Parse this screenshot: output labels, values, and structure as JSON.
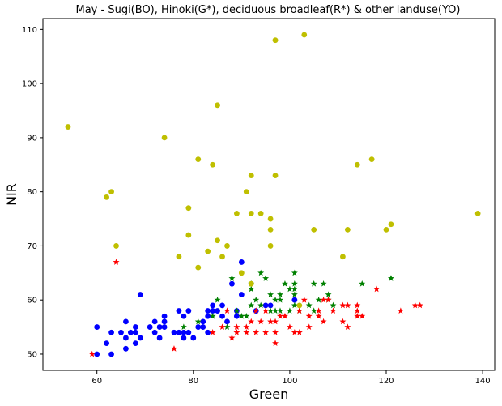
{
  "chart_data": {
    "type": "scatter",
    "title": "May - Sugi(BO), Hinoki(G*), deciduous broadleaf(R*) & other landuse(YO)",
    "xlabel": "Green",
    "ylabel": "NIR",
    "xlim": [
      48.8,
      142.5
    ],
    "ylim": [
      47,
      112
    ],
    "xticks": [
      60,
      80,
      100,
      120,
      140
    ],
    "yticks": [
      50,
      60,
      70,
      80,
      90,
      100,
      110
    ],
    "grid": false,
    "series": [
      {
        "color": "#0000ff",
        "marker": "circle",
        "points": [
          [
            60,
            50
          ],
          [
            60,
            55
          ],
          [
            62,
            52
          ],
          [
            63,
            50
          ],
          [
            63,
            54
          ],
          [
            65,
            54
          ],
          [
            66,
            51
          ],
          [
            66,
            53
          ],
          [
            66,
            56
          ],
          [
            67,
            54
          ],
          [
            68,
            52
          ],
          [
            68,
            54
          ],
          [
            68,
            55
          ],
          [
            69,
            53
          ],
          [
            69,
            61
          ],
          [
            71,
            55
          ],
          [
            72,
            54
          ],
          [
            72,
            56
          ],
          [
            73,
            53
          ],
          [
            73,
            55
          ],
          [
            74,
            55
          ],
          [
            74,
            56
          ],
          [
            74,
            57
          ],
          [
            76,
            54
          ],
          [
            77,
            54
          ],
          [
            77,
            58
          ],
          [
            78,
            53
          ],
          [
            78,
            54
          ],
          [
            78,
            57
          ],
          [
            79,
            54
          ],
          [
            79,
            58
          ],
          [
            80,
            53
          ],
          [
            81,
            55
          ],
          [
            82,
            55
          ],
          [
            82,
            56
          ],
          [
            83,
            54
          ],
          [
            83,
            57
          ],
          [
            83,
            58
          ],
          [
            84,
            58
          ],
          [
            84,
            59
          ],
          [
            85,
            58
          ],
          [
            86,
            57
          ],
          [
            86,
            59
          ],
          [
            87,
            56
          ],
          [
            88,
            63
          ],
          [
            89,
            58
          ],
          [
            89,
            57
          ],
          [
            90,
            61
          ],
          [
            90,
            67
          ],
          [
            93,
            58
          ],
          [
            95,
            59
          ],
          [
            96,
            59
          ],
          [
            101,
            60
          ]
        ]
      },
      {
        "color": "#008000",
        "marker": "star",
        "points": [
          [
            78,
            55
          ],
          [
            81,
            56
          ],
          [
            84,
            57
          ],
          [
            85,
            60
          ],
          [
            87,
            55
          ],
          [
            88,
            64
          ],
          [
            89,
            58
          ],
          [
            90,
            57
          ],
          [
            91,
            57
          ],
          [
            92,
            59
          ],
          [
            92,
            62
          ],
          [
            92,
            63
          ],
          [
            93,
            60
          ],
          [
            94,
            59
          ],
          [
            94,
            65
          ],
          [
            95,
            64
          ],
          [
            96,
            58
          ],
          [
            96,
            61
          ],
          [
            97,
            58
          ],
          [
            97,
            60
          ],
          [
            98,
            58
          ],
          [
            98,
            60
          ],
          [
            98,
            61
          ],
          [
            99,
            63
          ],
          [
            100,
            62
          ],
          [
            100,
            58
          ],
          [
            101,
            59
          ],
          [
            101,
            61
          ],
          [
            101,
            62
          ],
          [
            101,
            63
          ],
          [
            101,
            65
          ],
          [
            102,
            58
          ],
          [
            104,
            59
          ],
          [
            105,
            58
          ],
          [
            105,
            63
          ],
          [
            106,
            60
          ],
          [
            107,
            63
          ],
          [
            108,
            61
          ],
          [
            108,
            60
          ],
          [
            109,
            59
          ],
          [
            115,
            63
          ],
          [
            121,
            64
          ]
        ]
      },
      {
        "color": "#ff0000",
        "marker": "star",
        "points": [
          [
            59,
            50
          ],
          [
            64,
            67
          ],
          [
            76,
            51
          ],
          [
            84,
            54
          ],
          [
            86,
            55
          ],
          [
            87,
            58
          ],
          [
            88,
            53
          ],
          [
            89,
            54
          ],
          [
            89,
            55
          ],
          [
            91,
            54
          ],
          [
            91,
            55
          ],
          [
            92,
            56
          ],
          [
            93,
            54
          ],
          [
            93,
            58
          ],
          [
            94,
            56
          ],
          [
            95,
            54
          ],
          [
            95,
            58
          ],
          [
            96,
            56
          ],
          [
            97,
            52
          ],
          [
            97,
            54
          ],
          [
            97,
            56
          ],
          [
            98,
            57
          ],
          [
            99,
            57
          ],
          [
            100,
            55
          ],
          [
            101,
            54
          ],
          [
            102,
            54
          ],
          [
            102,
            58
          ],
          [
            103,
            60
          ],
          [
            104,
            55
          ],
          [
            104,
            57
          ],
          [
            106,
            57
          ],
          [
            106,
            58
          ],
          [
            107,
            56
          ],
          [
            107,
            60
          ],
          [
            108,
            60
          ],
          [
            109,
            58
          ],
          [
            111,
            56
          ],
          [
            111,
            59
          ],
          [
            112,
            55
          ],
          [
            112,
            59
          ],
          [
            114,
            57
          ],
          [
            114,
            59
          ],
          [
            114,
            58
          ],
          [
            115,
            57
          ],
          [
            118,
            62
          ],
          [
            123,
            58
          ],
          [
            126,
            59
          ],
          [
            127,
            59
          ]
        ]
      },
      {
        "color": "#bfbf00",
        "marker": "circle",
        "points": [
          [
            54,
            92
          ],
          [
            62,
            79
          ],
          [
            63,
            80
          ],
          [
            64,
            70
          ],
          [
            74,
            90
          ],
          [
            77,
            68
          ],
          [
            79,
            72
          ],
          [
            79,
            77
          ],
          [
            81,
            66
          ],
          [
            81,
            86
          ],
          [
            83,
            69
          ],
          [
            84,
            85
          ],
          [
            85,
            71
          ],
          [
            85,
            96
          ],
          [
            86,
            68
          ],
          [
            87,
            70
          ],
          [
            89,
            76
          ],
          [
            90,
            65
          ],
          [
            91,
            80
          ],
          [
            92,
            63
          ],
          [
            92,
            76
          ],
          [
            92,
            83
          ],
          [
            94,
            76
          ],
          [
            96,
            73
          ],
          [
            96,
            70
          ],
          [
            96,
            75
          ],
          [
            97,
            83
          ],
          [
            97,
            108
          ],
          [
            102,
            59
          ],
          [
            103,
            109
          ],
          [
            105,
            73
          ],
          [
            111,
            68
          ],
          [
            112,
            73
          ],
          [
            114,
            85
          ],
          [
            117,
            86
          ],
          [
            120,
            73
          ],
          [
            121,
            74
          ],
          [
            139,
            76
          ]
        ]
      }
    ]
  }
}
